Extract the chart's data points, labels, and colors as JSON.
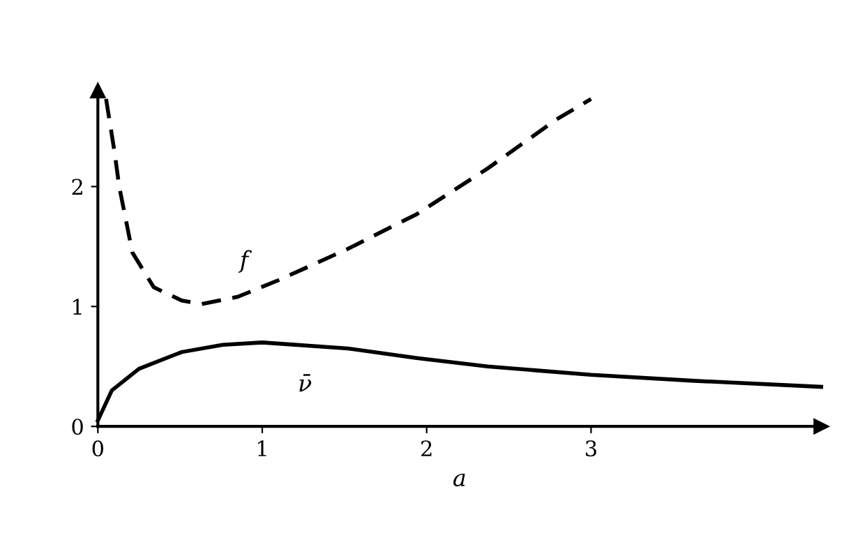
{
  "chart_data": {
    "type": "line",
    "xlabel": "a",
    "xlim": [
      0,
      4.4
    ],
    "ylim": [
      0,
      2.8
    ],
    "xticks": [
      0,
      1,
      2,
      3
    ],
    "yticks": [
      0,
      1,
      2
    ],
    "grid": false,
    "legend": false,
    "marker": "none",
    "series": [
      {
        "name": "f",
        "color": "#000000",
        "line_style": "dashed",
        "x": [
          0.05,
          0.1,
          0.13,
          0.21,
          0.34,
          0.51,
          0.63,
          0.85,
          1.1,
          1.52,
          1.94,
          2.37,
          2.79,
          3.0
        ],
        "values": [
          2.73,
          2.3,
          2.0,
          1.45,
          1.16,
          1.05,
          1.02,
          1.08,
          1.22,
          1.48,
          1.77,
          2.15,
          2.56,
          2.73
        ]
      },
      {
        "name": "ν̄",
        "color": "#000000",
        "line_style": "solid",
        "x": [
          0.0,
          0.085,
          0.25,
          0.51,
          0.76,
          1.0,
          1.52,
          1.94,
          2.37,
          3.0,
          3.63,
          4.4
        ],
        "values": [
          0.05,
          0.3,
          0.48,
          0.62,
          0.68,
          0.7,
          0.65,
          0.57,
          0.5,
          0.43,
          0.38,
          0.33
        ]
      }
    ]
  }
}
